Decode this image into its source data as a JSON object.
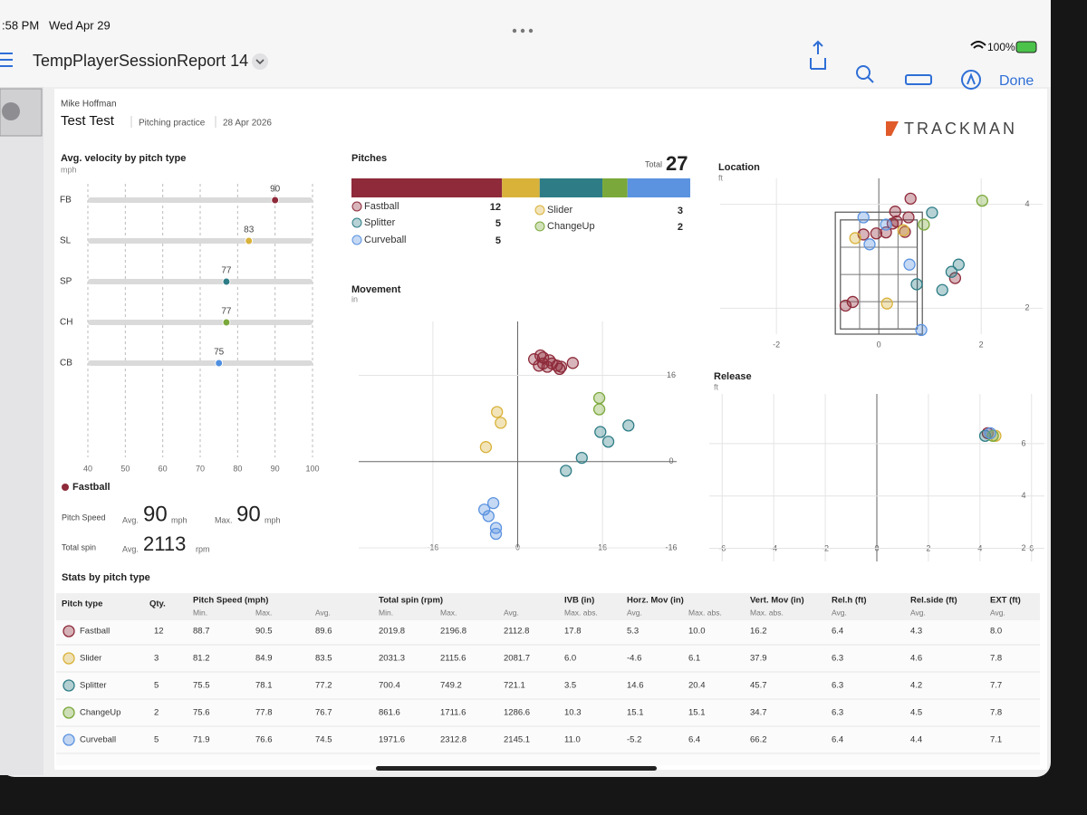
{
  "status_bar": {
    "time": ":58 PM",
    "date": "Wed Apr 29",
    "battery": "100%"
  },
  "toolbar": {
    "title": "TempPlayerSessionReport 14",
    "done": "Done"
  },
  "report": {
    "player": "Mike Hoffman",
    "session": "Test Test",
    "session_type": "Pitching practice",
    "date": "28 Apr 2026",
    "brand": "TRACKMAN"
  },
  "velocity_chart": {
    "type": "dot",
    "title": "Avg. velocity by pitch type",
    "unit": "mph",
    "categories": [
      "FB",
      "SL",
      "SP",
      "CH",
      "CB"
    ],
    "values": [
      90,
      83,
      77,
      77,
      75
    ],
    "colors": [
      "#8e2a3a",
      "#d9b23a",
      "#2e7d86",
      "#7aa83a",
      "#4f8fe0"
    ],
    "xlim": [
      40,
      100
    ],
    "xticks": [
      40,
      50,
      60,
      70,
      80,
      90,
      100
    ],
    "grid": true
  },
  "selected_pitch": {
    "name": "Fastball",
    "color": "#8e2a3a",
    "speed_label": "Pitch Speed",
    "avg_label": "Avg.",
    "speed_avg": 90,
    "speed_unit": "mph",
    "max_label": "Max.",
    "speed_max": 90,
    "spin_label": "Total spin",
    "spin_avg": 2113,
    "spin_unit": "rpm"
  },
  "pitches": {
    "type": "stacked-bar",
    "title": "Pitches",
    "total_label": "Total",
    "total": 27,
    "series": [
      {
        "name": "Fastball",
        "color": "#8e2a3a",
        "value": 12
      },
      {
        "name": "Slider",
        "color": "#d9b23a",
        "value": 3
      },
      {
        "name": "Splitter",
        "color": "#2e7d86",
        "value": 5
      },
      {
        "name": "ChangeUp",
        "color": "#7aa83a",
        "value": 2
      },
      {
        "name": "Curveball",
        "color": "#5b93e0",
        "value": 5
      }
    ]
  },
  "movement_chart": {
    "type": "scatter",
    "title": "Movement",
    "unit": "in",
    "xlim": [
      -30,
      30
    ],
    "ylim": [
      -16,
      26
    ],
    "xticks": [
      -16,
      0,
      16
    ],
    "yticks": [
      -16,
      0,
      16
    ],
    "series": [
      {
        "color": "#8e2a3a",
        "x": [
          3.1,
          4.3,
          4.8,
          5.6,
          4.0,
          6.5,
          7.9,
          8.2,
          10.4,
          4.8,
          6.0,
          7.4
        ],
        "y": [
          19.0,
          19.7,
          18.2,
          17.6,
          17.8,
          18.2,
          17.2,
          17.6,
          18.3,
          19.3,
          18.8,
          17.8
        ]
      },
      {
        "color": "#d9b23a",
        "x": [
          -3.9,
          -3.2,
          -6.0
        ],
        "y": [
          9.2,
          7.2,
          2.7
        ]
      },
      {
        "color": "#2e7d86",
        "x": [
          20.9,
          17.1,
          15.6,
          12.1,
          9.1
        ],
        "y": [
          6.7,
          3.7,
          5.5,
          0.7,
          -1.7
        ]
      },
      {
        "color": "#7aa83a",
        "x": [
          15.4,
          15.4
        ],
        "y": [
          11.8,
          9.7
        ]
      },
      {
        "color": "#5b93e0",
        "x": [
          -4.6,
          -6.3,
          -4.1,
          -5.5,
          -4.1
        ],
        "y": [
          -7.7,
          -8.9,
          -12.3,
          -10.1,
          -13.4
        ]
      }
    ]
  },
  "location_chart": {
    "type": "scatter",
    "title": "Location",
    "unit": "ft",
    "xlim": [
      -3.1,
      3.2
    ],
    "ylim": [
      1.5,
      4.5
    ],
    "xticks": [
      -2,
      0,
      2
    ],
    "yticks": [
      2,
      4
    ],
    "series": [
      {
        "color": "#8e2a3a",
        "x": [
          0.62,
          0.32,
          -0.05,
          -0.3,
          0.14,
          0.27,
          0.51,
          -0.51,
          -0.65,
          1.49,
          0.35,
          0.58
        ],
        "y": [
          4.11,
          3.86,
          3.44,
          3.42,
          3.46,
          3.63,
          3.47,
          2.12,
          2.05,
          2.58,
          3.67,
          3.75
        ]
      },
      {
        "color": "#d9b23a",
        "x": [
          -0.46,
          0.16,
          0.48
        ],
        "y": [
          3.35,
          2.09,
          3.5
        ]
      },
      {
        "color": "#2e7d86",
        "x": [
          1.04,
          1.56,
          0.74,
          1.42,
          1.24
        ],
        "y": [
          3.84,
          2.84,
          2.46,
          2.7,
          2.35
        ]
      },
      {
        "color": "#7aa83a",
        "x": [
          2.02,
          0.88
        ],
        "y": [
          4.07,
          3.61
        ]
      },
      {
        "color": "#5b93e0",
        "x": [
          -0.3,
          0.83,
          0.6,
          0.14,
          -0.18
        ],
        "y": [
          3.75,
          1.58,
          2.84,
          3.61,
          3.23
        ]
      }
    ]
  },
  "release_chart": {
    "type": "scatter",
    "title": "Release",
    "unit": "ft",
    "xlim": [
      -6.5,
      6.5
    ],
    "ylim": [
      1.5,
      7.9
    ],
    "xticks": [
      -6,
      -4,
      -2,
      0,
      2,
      4,
      6
    ],
    "yticks": [
      2,
      4,
      6
    ],
    "series": [
      {
        "color": "#8e2a3a",
        "x": [
          4.3
        ],
        "y": [
          6.4
        ]
      },
      {
        "color": "#d9b23a",
        "x": [
          4.6
        ],
        "y": [
          6.3
        ]
      },
      {
        "color": "#2e7d86",
        "x": [
          4.2
        ],
        "y": [
          6.3
        ]
      },
      {
        "color": "#7aa83a",
        "x": [
          4.5
        ],
        "y": [
          6.3
        ]
      },
      {
        "color": "#5b93e0",
        "x": [
          4.4
        ],
        "y": [
          6.4
        ]
      }
    ]
  },
  "stats_table": {
    "title": "Stats by pitch type",
    "headers": [
      "Pitch type",
      "Qty.",
      "Pitch Speed (mph)",
      "Total spin (rpm)",
      "IVB (in)",
      "Horz. Mov (in)",
      "Vert. Mov (in)",
      "Rel.h (ft)",
      "Rel.side (ft)",
      "EXT (ft)"
    ],
    "subheaders": [
      "Min.",
      "Max.",
      "Avg.",
      "Min.",
      "Max.",
      "Avg.",
      "Max. abs.",
      "Avg.",
      "Max. abs.",
      "Max. abs.",
      "Avg.",
      "Avg.",
      "Avg."
    ],
    "rows": [
      [
        "Fastball",
        "12",
        "88.7",
        "90.5",
        "89.6",
        "2019.8",
        "2196.8",
        "2112.8",
        "17.8",
        "5.3",
        "10.0",
        "16.2",
        "6.4",
        "4.3",
        "8.0"
      ],
      [
        "Slider",
        "3",
        "81.2",
        "84.9",
        "83.5",
        "2031.3",
        "2115.6",
        "2081.7",
        "6.0",
        "-4.6",
        "6.1",
        "37.9",
        "6.3",
        "4.6",
        "7.8"
      ],
      [
        "Splitter",
        "5",
        "75.5",
        "78.1",
        "77.2",
        "700.4",
        "749.2",
        "721.1",
        "3.5",
        "14.6",
        "20.4",
        "45.7",
        "6.3",
        "4.2",
        "7.7"
      ],
      [
        "ChangeUp",
        "2",
        "75.6",
        "77.8",
        "76.7",
        "861.6",
        "1711.6",
        "1286.6",
        "10.3",
        "15.1",
        "15.1",
        "34.7",
        "6.3",
        "4.5",
        "7.8"
      ],
      [
        "Curveball",
        "5",
        "71.9",
        "76.6",
        "74.5",
        "1971.6",
        "2312.8",
        "2145.1",
        "11.0",
        "-5.2",
        "6.4",
        "66.2",
        "6.4",
        "4.4",
        "7.1"
      ]
    ]
  }
}
